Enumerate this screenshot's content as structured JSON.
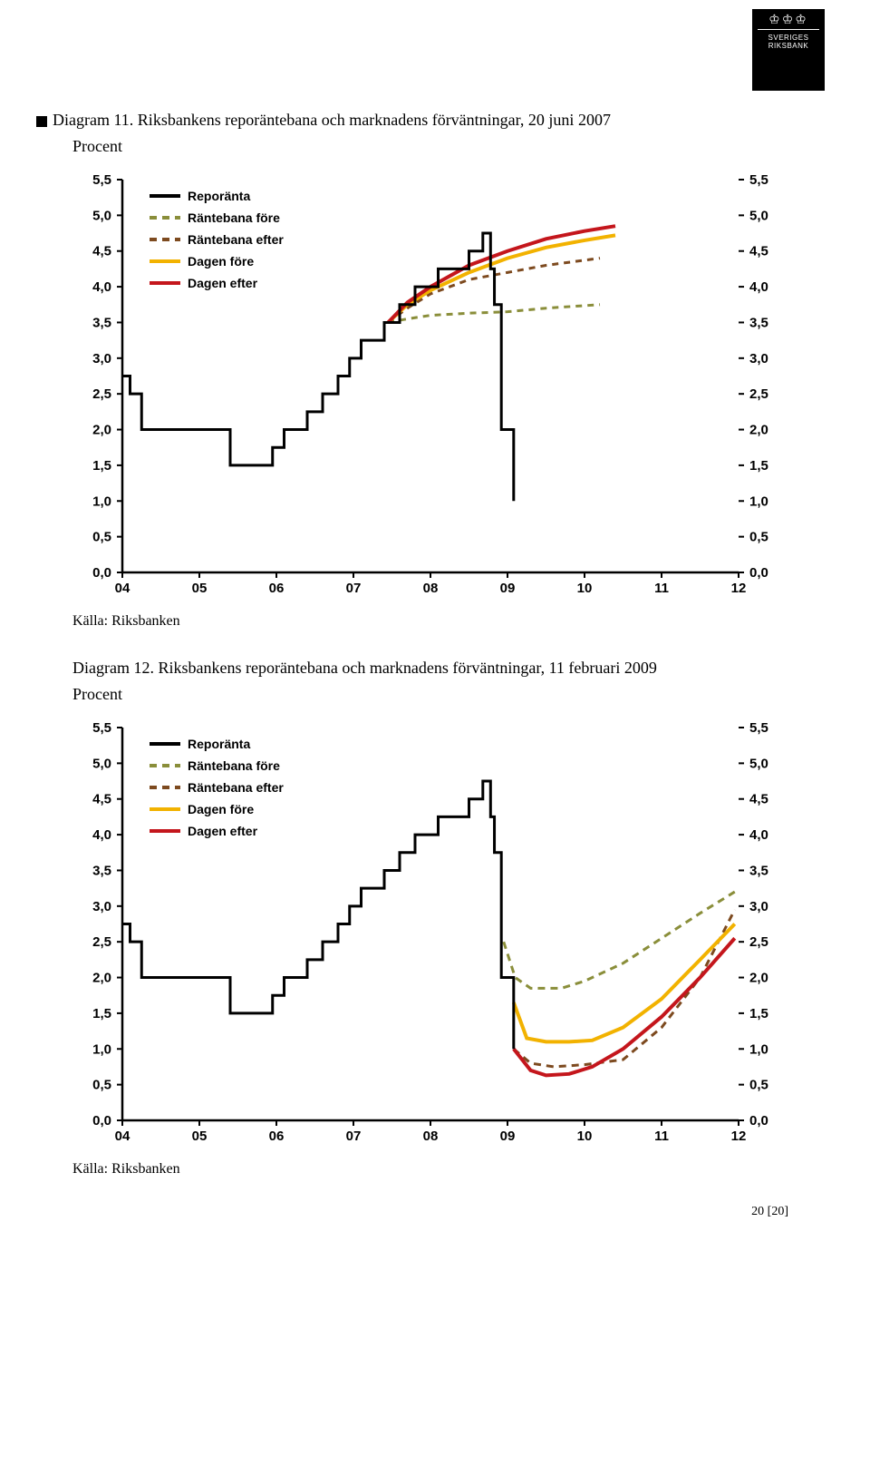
{
  "logo": {
    "line1": "SVERIGES",
    "line2": "RIKSBANK"
  },
  "diagram11": {
    "title": "Diagram 11. Riksbankens reporäntebana och marknadens förväntningar, 20 juni 2007",
    "subtitle": "Procent",
    "source": "Källa: Riksbanken",
    "type": "line",
    "ylim": [
      0,
      5.5
    ],
    "ytick_step": 0.5,
    "ylabels": [
      "5,5",
      "5,0",
      "4,5",
      "4,0",
      "3,5",
      "3,0",
      "2,5",
      "2,0",
      "1,5",
      "1,0",
      "0,5",
      "0,0"
    ],
    "xlabels": [
      "04",
      "05",
      "06",
      "07",
      "08",
      "09",
      "10",
      "11",
      "12"
    ],
    "xlim": [
      2004,
      2012
    ],
    "legend": [
      {
        "label": "Reporänta",
        "color": "#000000",
        "style": "solid",
        "weight": "bold"
      },
      {
        "label": "Räntebana före",
        "color": "#8a8e3a",
        "style": "dashed",
        "weight": "bold"
      },
      {
        "label": "Räntebana efter",
        "color": "#7d4a1f",
        "style": "dashed",
        "weight": "bold"
      },
      {
        "label": "Dagen före",
        "color": "#f2b200",
        "style": "solid",
        "weight": "bold"
      },
      {
        "label": "Dagen efter",
        "color": "#c4161c",
        "style": "solid",
        "weight": "bold"
      }
    ],
    "background_color": "#ffffff",
    "axis_color": "#000000",
    "label_fontsize": 15,
    "legend_fontsize": 14,
    "series": {
      "reporanta": {
        "color": "#000000",
        "width": 3,
        "points": [
          [
            2004.0,
            2.75
          ],
          [
            2004.1,
            2.75
          ],
          [
            2004.1,
            2.5
          ],
          [
            2004.25,
            2.5
          ],
          [
            2004.25,
            2.0
          ],
          [
            2005.4,
            2.0
          ],
          [
            2005.4,
            1.5
          ],
          [
            2005.95,
            1.5
          ],
          [
            2005.95,
            1.75
          ],
          [
            2006.1,
            1.75
          ],
          [
            2006.1,
            2.0
          ],
          [
            2006.4,
            2.0
          ],
          [
            2006.4,
            2.25
          ],
          [
            2006.6,
            2.25
          ],
          [
            2006.6,
            2.5
          ],
          [
            2006.8,
            2.5
          ],
          [
            2006.8,
            2.75
          ],
          [
            2006.95,
            2.75
          ],
          [
            2006.95,
            3.0
          ],
          [
            2007.1,
            3.0
          ],
          [
            2007.1,
            3.25
          ],
          [
            2007.4,
            3.25
          ],
          [
            2007.4,
            3.5
          ],
          [
            2007.6,
            3.5
          ],
          [
            2007.6,
            3.75
          ],
          [
            2007.8,
            3.75
          ],
          [
            2007.8,
            4.0
          ],
          [
            2008.1,
            4.0
          ],
          [
            2008.1,
            4.25
          ],
          [
            2008.5,
            4.25
          ],
          [
            2008.5,
            4.5
          ],
          [
            2008.68,
            4.5
          ],
          [
            2008.68,
            4.75
          ],
          [
            2008.78,
            4.75
          ],
          [
            2008.78,
            4.25
          ],
          [
            2008.83,
            4.25
          ],
          [
            2008.83,
            3.75
          ],
          [
            2008.92,
            3.75
          ],
          [
            2008.92,
            2.0
          ],
          [
            2009.08,
            2.0
          ],
          [
            2009.08,
            1.0
          ]
        ]
      },
      "rantebana_fore": {
        "color": "#8a8e3a",
        "width": 3,
        "dash": "7 6",
        "points": [
          [
            2007.45,
            3.5
          ],
          [
            2007.7,
            3.55
          ],
          [
            2008.0,
            3.6
          ],
          [
            2008.5,
            3.63
          ],
          [
            2009.0,
            3.65
          ],
          [
            2009.5,
            3.7
          ],
          [
            2010.2,
            3.75
          ]
        ]
      },
      "rantebana_efter": {
        "color": "#7d4a1f",
        "width": 3,
        "dash": "7 6",
        "points": [
          [
            2007.45,
            3.5
          ],
          [
            2007.7,
            3.7
          ],
          [
            2008.0,
            3.9
          ],
          [
            2008.5,
            4.1
          ],
          [
            2009.0,
            4.2
          ],
          [
            2009.5,
            4.3
          ],
          [
            2010.2,
            4.4
          ]
        ]
      },
      "dagen_fore": {
        "color": "#f2b200",
        "width": 4,
        "points": [
          [
            2007.45,
            3.5
          ],
          [
            2007.7,
            3.75
          ],
          [
            2008.0,
            3.95
          ],
          [
            2008.5,
            4.2
          ],
          [
            2009.0,
            4.4
          ],
          [
            2009.5,
            4.55
          ],
          [
            2010.0,
            4.65
          ],
          [
            2010.4,
            4.72
          ]
        ]
      },
      "dagen_efter": {
        "color": "#c4161c",
        "width": 4,
        "points": [
          [
            2007.45,
            3.5
          ],
          [
            2007.7,
            3.78
          ],
          [
            2008.0,
            4.0
          ],
          [
            2008.5,
            4.3
          ],
          [
            2009.0,
            4.5
          ],
          [
            2009.5,
            4.67
          ],
          [
            2010.0,
            4.78
          ],
          [
            2010.4,
            4.85
          ]
        ]
      }
    }
  },
  "diagram12": {
    "title": "Diagram 12. Riksbankens reporäntebana och marknadens förväntningar, 11 februari 2009",
    "subtitle": "Procent",
    "source": "Källa: Riksbanken",
    "type": "line",
    "ylim": [
      0,
      5.5
    ],
    "ytick_step": 0.5,
    "ylabels": [
      "5,5",
      "5,0",
      "4,5",
      "4,0",
      "3,5",
      "3,0",
      "2,5",
      "2,0",
      "1,5",
      "1,0",
      "0,5",
      "0,0"
    ],
    "xlabels": [
      "04",
      "05",
      "06",
      "07",
      "08",
      "09",
      "10",
      "11",
      "12"
    ],
    "xlim": [
      2004,
      2012
    ],
    "legend": [
      {
        "label": "Reporänta",
        "color": "#000000",
        "style": "solid",
        "weight": "bold"
      },
      {
        "label": "Räntebana före",
        "color": "#8a8e3a",
        "style": "dashed",
        "weight": "bold"
      },
      {
        "label": "Räntebana efter",
        "color": "#7d4a1f",
        "style": "dashed",
        "weight": "bold"
      },
      {
        "label": "Dagen före",
        "color": "#f2b200",
        "style": "solid",
        "weight": "bold"
      },
      {
        "label": "Dagen efter",
        "color": "#c4161c",
        "style": "solid",
        "weight": "bold"
      }
    ],
    "background_color": "#ffffff",
    "axis_color": "#000000",
    "label_fontsize": 15,
    "legend_fontsize": 14,
    "series": {
      "reporanta": {
        "color": "#000000",
        "width": 3,
        "points": [
          [
            2004.0,
            2.75
          ],
          [
            2004.1,
            2.75
          ],
          [
            2004.1,
            2.5
          ],
          [
            2004.25,
            2.5
          ],
          [
            2004.25,
            2.0
          ],
          [
            2005.4,
            2.0
          ],
          [
            2005.4,
            1.5
          ],
          [
            2005.95,
            1.5
          ],
          [
            2005.95,
            1.75
          ],
          [
            2006.1,
            1.75
          ],
          [
            2006.1,
            2.0
          ],
          [
            2006.4,
            2.0
          ],
          [
            2006.4,
            2.25
          ],
          [
            2006.6,
            2.25
          ],
          [
            2006.6,
            2.5
          ],
          [
            2006.8,
            2.5
          ],
          [
            2006.8,
            2.75
          ],
          [
            2006.95,
            2.75
          ],
          [
            2006.95,
            3.0
          ],
          [
            2007.1,
            3.0
          ],
          [
            2007.1,
            3.25
          ],
          [
            2007.4,
            3.25
          ],
          [
            2007.4,
            3.5
          ],
          [
            2007.6,
            3.5
          ],
          [
            2007.6,
            3.75
          ],
          [
            2007.8,
            3.75
          ],
          [
            2007.8,
            4.0
          ],
          [
            2008.1,
            4.0
          ],
          [
            2008.1,
            4.25
          ],
          [
            2008.5,
            4.25
          ],
          [
            2008.5,
            4.5
          ],
          [
            2008.68,
            4.5
          ],
          [
            2008.68,
            4.75
          ],
          [
            2008.78,
            4.75
          ],
          [
            2008.78,
            4.25
          ],
          [
            2008.83,
            4.25
          ],
          [
            2008.83,
            3.75
          ],
          [
            2008.92,
            3.75
          ],
          [
            2008.92,
            2.0
          ],
          [
            2009.08,
            2.0
          ],
          [
            2009.08,
            1.0
          ]
        ]
      },
      "rantebana_fore": {
        "color": "#8a8e3a",
        "width": 3,
        "dash": "8 6",
        "points": [
          [
            2008.95,
            2.5
          ],
          [
            2009.1,
            2.0
          ],
          [
            2009.3,
            1.85
          ],
          [
            2009.7,
            1.85
          ],
          [
            2010.0,
            1.95
          ],
          [
            2010.5,
            2.2
          ],
          [
            2011.0,
            2.55
          ],
          [
            2011.5,
            2.9
          ],
          [
            2011.95,
            3.2
          ]
        ]
      },
      "rantebana_efter": {
        "color": "#7d4a1f",
        "width": 3,
        "dash": "8 6",
        "points": [
          [
            2009.08,
            1.0
          ],
          [
            2009.3,
            0.8
          ],
          [
            2009.6,
            0.75
          ],
          [
            2010.0,
            0.78
          ],
          [
            2010.5,
            0.85
          ],
          [
            2011.0,
            1.3
          ],
          [
            2011.5,
            2.0
          ],
          [
            2011.95,
            2.95
          ]
        ]
      },
      "dagen_fore": {
        "color": "#f2b200",
        "width": 4,
        "points": [
          [
            2009.08,
            1.65
          ],
          [
            2009.25,
            1.15
          ],
          [
            2009.5,
            1.1
          ],
          [
            2009.8,
            1.1
          ],
          [
            2010.1,
            1.12
          ],
          [
            2010.5,
            1.3
          ],
          [
            2011.0,
            1.7
          ],
          [
            2011.5,
            2.25
          ],
          [
            2011.95,
            2.75
          ]
        ]
      },
      "dagen_efter": {
        "color": "#c4161c",
        "width": 4,
        "points": [
          [
            2009.08,
            1.0
          ],
          [
            2009.3,
            0.7
          ],
          [
            2009.5,
            0.63
          ],
          [
            2009.8,
            0.65
          ],
          [
            2010.1,
            0.75
          ],
          [
            2010.5,
            1.0
          ],
          [
            2011.0,
            1.45
          ],
          [
            2011.5,
            2.0
          ],
          [
            2011.95,
            2.55
          ]
        ]
      }
    }
  },
  "footer": "20 [20]"
}
